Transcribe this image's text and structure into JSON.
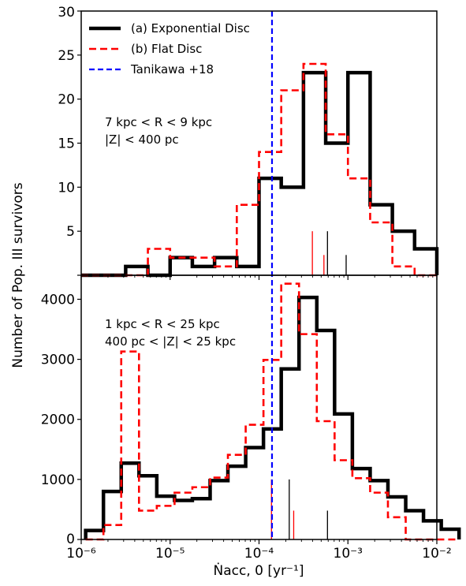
{
  "chart_data": {
    "type": "histogram",
    "xlabel": "Ṅacc, 0 [yr⁻¹]",
    "ylabel": "Number of Pop. III survivors",
    "xscale": "log",
    "xlim": [
      1e-06,
      0.01
    ],
    "x_tick_labels": [
      "10⁻⁶",
      "10⁻⁵",
      "10⁻⁴",
      "10⁻³",
      "10⁻²"
    ],
    "vline": {
      "name": "Tanikawa +18",
      "x": 0.00014,
      "color": "#0000ff"
    },
    "colors": {
      "exponential": "#000000",
      "flat": "#ff0000",
      "tanikawa": "#0000ff"
    },
    "legend": {
      "location": "top-left",
      "entries": [
        {
          "label": "(a) Exponential Disc",
          "color": "#000000",
          "style": "solid"
        },
        {
          "label": "(b) Flat Disc",
          "color": "#ff0000",
          "style": "dashed"
        },
        {
          "label": "Tanikawa +18",
          "color": "#0000ff",
          "style": "dashed"
        }
      ]
    },
    "panels": [
      {
        "annotation": [
          "7 kpc < R < 9 kpc",
          "|Z| < 400 pc"
        ],
        "ylim": [
          0,
          30
        ],
        "yticks": [
          0,
          5,
          10,
          15,
          20,
          25,
          30
        ],
        "bin_edges_log10": [
          -6.0,
          -5.75,
          -5.5,
          -5.25,
          -5.0,
          -4.75,
          -4.5,
          -4.25,
          -4.0,
          -3.75,
          -3.5,
          -3.25,
          -3.0,
          -2.75,
          -2.5,
          -2.25,
          -2.0
        ],
        "series": [
          {
            "name": "(a) Exponential Disc",
            "color": "#000000",
            "style": "solid",
            "values": [
              0,
              0,
              1,
              0,
              2,
              1,
              2,
              1,
              11,
              10,
              23,
              15,
              23,
              8,
              5,
              3
            ]
          },
          {
            "name": "(b) Flat Disc",
            "color": "#ff0000",
            "style": "dashed",
            "values": [
              0,
              0,
              0,
              3,
              2,
              2,
              1,
              8,
              14,
              21,
              24,
              16,
              11,
              6,
              1,
              0
            ]
          }
        ],
        "marks": [
          {
            "x_log10": -3.4,
            "height": 5,
            "color": "#ff0000"
          },
          {
            "x_log10": -3.27,
            "height": 2.3,
            "color": "#ff0000"
          },
          {
            "x_log10": -3.23,
            "height": 5,
            "color": "#000000"
          },
          {
            "x_log10": -3.02,
            "height": 2.3,
            "color": "#000000"
          }
        ]
      },
      {
        "annotation": [
          "1 kpc < R < 25 kpc",
          "400 pc < |Z| < 25 kpc"
        ],
        "ylim": [
          0,
          4400
        ],
        "yticks": [
          0,
          1000,
          2000,
          3000,
          4000
        ],
        "bin_edges_log10": [
          -5.95,
          -5.75,
          -5.55,
          -5.35,
          -5.15,
          -4.95,
          -4.75,
          -4.55,
          -4.35,
          -4.15,
          -3.95,
          -3.75,
          -3.55,
          -3.35,
          -3.15,
          -2.95,
          -2.75,
          -2.55,
          -2.35,
          -2.15,
          -1.95,
          -1.75
        ],
        "series": [
          {
            "name": "(a) Exponential Disc",
            "color": "#000000",
            "style": "solid",
            "values": [
              150,
              800,
              1270,
              1060,
              720,
              650,
              680,
              980,
              1220,
              1530,
              1840,
              2840,
              4030,
              3480,
              2090,
              1180,
              980,
              710,
              480,
              310,
              170
            ]
          },
          {
            "name": "(b) Flat Disc",
            "color": "#ff0000",
            "style": "dashed",
            "values": [
              0,
              240,
              3130,
              480,
              560,
              780,
              870,
              1030,
              1410,
              1910,
              2990,
              4260,
              3420,
              1970,
              1320,
              1020,
              780,
              370,
              0,
              0,
              0
            ]
          }
        ],
        "marks": [
          {
            "x_log10": -3.86,
            "height": 1000,
            "color": "#ff0000"
          },
          {
            "x_log10": -3.61,
            "height": 480,
            "color": "#ff0000"
          },
          {
            "x_log10": -3.66,
            "height": 1000,
            "color": "#000000"
          },
          {
            "x_log10": -3.23,
            "height": 480,
            "color": "#000000"
          }
        ]
      }
    ]
  }
}
